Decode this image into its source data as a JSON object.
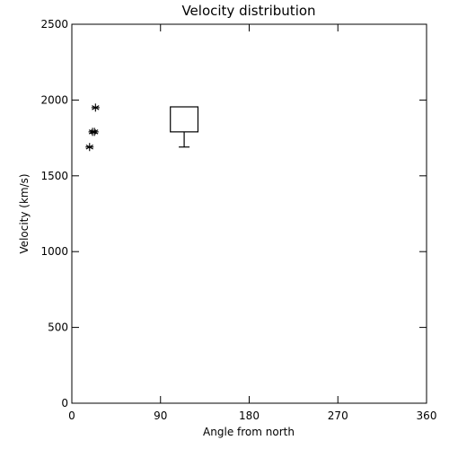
{
  "chart_data": {
    "type": "scatter",
    "title": "Velocity distribution",
    "xlabel": "Angle from north",
    "ylabel": "Velocity (km/s)",
    "xlim": [
      0,
      360
    ],
    "ylim": [
      0,
      2500
    ],
    "x_ticks": [
      0,
      90,
      180,
      270,
      360
    ],
    "y_ticks": [
      0,
      500,
      1000,
      1500,
      2000,
      2500
    ],
    "grid": false,
    "points": [
      {
        "x": 18,
        "y": 1690
      },
      {
        "x": 21,
        "y": 1790
      },
      {
        "x": 23,
        "y": 1790
      },
      {
        "x": 24,
        "y": 1950
      }
    ],
    "box": {
      "x_range": [
        100,
        128
      ],
      "q1": 1790,
      "q3": 1955,
      "whisker_low": 1690
    }
  }
}
